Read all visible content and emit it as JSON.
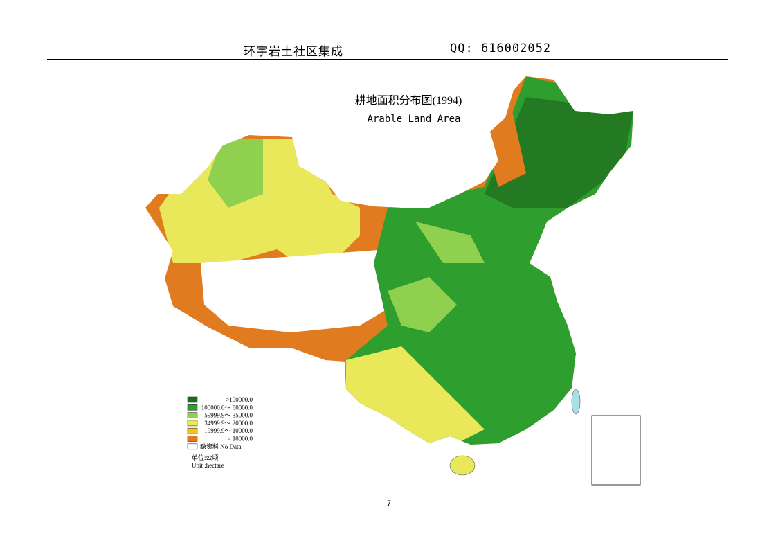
{
  "header": {
    "left": "环宇岩土社区集成",
    "right": "QQ: 616002052"
  },
  "map": {
    "title": "耕地面积分布图(1994)",
    "subtitle": "Arable Land Area"
  },
  "legend": {
    "items": [
      {
        "label": ">100000.0",
        "color": "#1f6b1f"
      },
      {
        "label": "100000.0～ 60000.0",
        "color": "#2e9e2e"
      },
      {
        "label": "59999.9～ 35000.0",
        "color": "#8fd14f"
      },
      {
        "label": "34999.9～ 20000.0",
        "color": "#e8e85a"
      },
      {
        "label": "19999.9～ 10000.0",
        "color": "#f0c419"
      },
      {
        "label": "< 10000.0",
        "color": "#e07b20"
      },
      {
        "label": "缺资料 No Data",
        "color": "#ffffff"
      }
    ],
    "unit_zh": "单位:公顷",
    "unit_en": "Unit :hectare"
  },
  "page_number": "7"
}
